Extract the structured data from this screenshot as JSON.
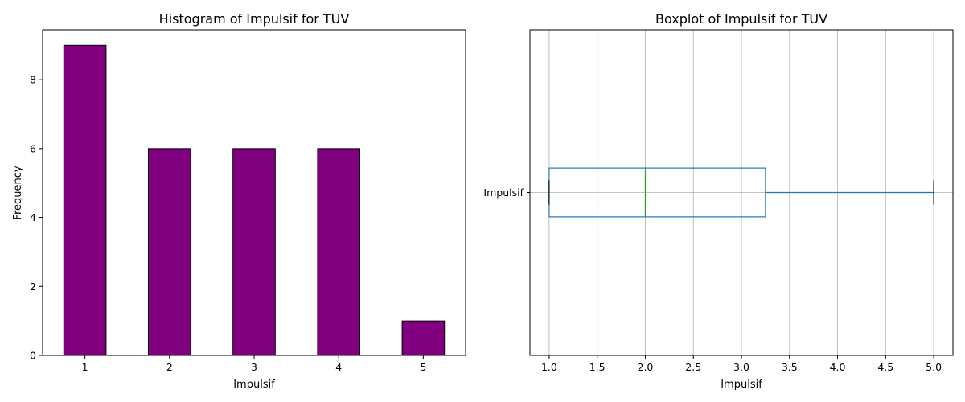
{
  "chart_data": [
    {
      "type": "bar",
      "title": "Histogram of Impulsif for TUV",
      "xlabel": "Impulsif",
      "ylabel": "Frequency",
      "categories": [
        "1",
        "2",
        "3",
        "4",
        "5"
      ],
      "values": [
        9,
        6,
        6,
        6,
        1
      ],
      "ylim": [
        0,
        9.45
      ],
      "yticks": [
        "0",
        "2",
        "4",
        "6",
        "8"
      ],
      "bar_color": "#800080",
      "edge_color": "#000000",
      "grid": false
    },
    {
      "type": "boxplot",
      "title": "Boxplot of Impulsif for TUV",
      "xlabel": "Impulsif",
      "ylabel": "",
      "category": "Impulsif",
      "orientation": "horizontal",
      "stats": {
        "whisker_low": 1.0,
        "q1": 1.0,
        "median": 2.0,
        "q3": 3.25,
        "whisker_high": 5.0
      },
      "xlim": [
        0.8,
        5.2
      ],
      "xticks": [
        "1.0",
        "1.5",
        "2.0",
        "2.5",
        "3.0",
        "3.5",
        "4.0",
        "4.5",
        "5.0"
      ],
      "box_color": "#1f77b4",
      "median_color": "#2ca02c",
      "grid": true
    }
  ]
}
